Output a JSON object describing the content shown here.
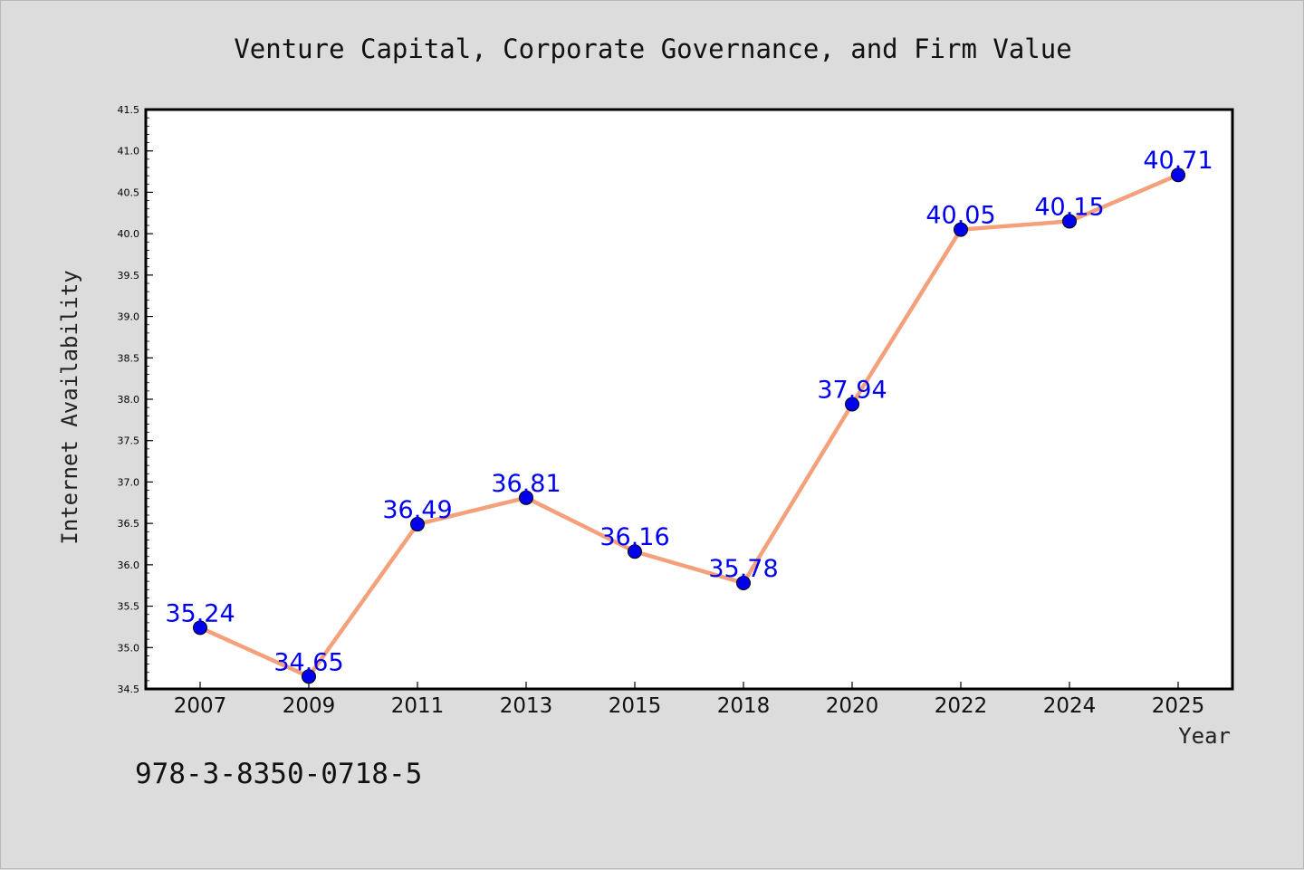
{
  "chart_data": {
    "type": "line",
    "title": "Venture Capital, Corporate Governance, and Firm Value",
    "xlabel": "Year",
    "ylabel": "Internet Availability",
    "categories": [
      "2007",
      "2009",
      "2011",
      "2013",
      "2015",
      "2018",
      "2020",
      "2022",
      "2024",
      "2025"
    ],
    "series": [
      {
        "values": [
          35.24,
          34.65,
          36.49,
          36.81,
          36.16,
          35.78,
          37.94,
          40.05,
          40.15,
          40.71
        ],
        "labels": [
          "35.24",
          "34.65",
          "36.49",
          "36.81",
          "36.16",
          "35.78",
          "37.94",
          "40.05",
          "40.15",
          "40.71"
        ],
        "line_color": "#f4a07a",
        "marker_color": "#0000ee",
        "label_color": "#0000ee"
      }
    ],
    "ylim": [
      34.5,
      41.5
    ],
    "yticks": [
      "34.5",
      "35.0",
      "35.5",
      "36.0",
      "36.5",
      "37.0",
      "37.5",
      "38.0",
      "38.5",
      "39.0",
      "39.5",
      "40.0",
      "40.5",
      "41.0",
      "41.5"
    ],
    "grid": false,
    "legend": "none"
  },
  "footer": {
    "isbn": "978-3-8350-0718-5"
  }
}
